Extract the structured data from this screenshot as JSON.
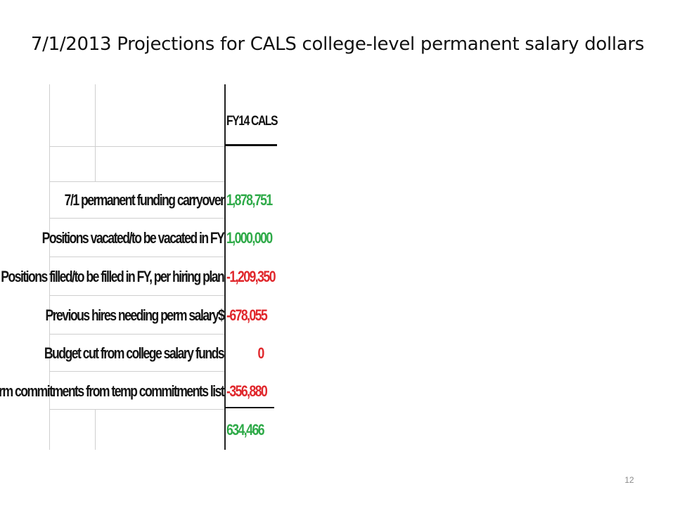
{
  "slide": {
    "title": "7/1/2013 Projections for CALS college-level permanent salary dollars",
    "page_number": "12"
  },
  "table": {
    "column_header": "FY14 CALS",
    "rows": [
      {
        "label": "7/1 permanent funding carryover",
        "value": "1,878,751",
        "sign": "positive",
        "color": "#2eaa48"
      },
      {
        "label": "Positions vacated/to be vacated in FY",
        "value": "1,000,000",
        "sign": "positive",
        "color": "#2eaa48"
      },
      {
        "label": "Positions filled/to be filled in FY, per hiring plan",
        "value": "-1,209,350",
        "sign": "negative",
        "color": "#e0262b"
      },
      {
        "label": "Previous hires needing perm salary$",
        "value": "-678,055",
        "sign": "negative",
        "color": "#e0262b"
      },
      {
        "label": "Budget cut from college salary funds",
        "value": "0",
        "sign": "negative",
        "color": "#e0262b"
      },
      {
        "label": "Perm commitments from temp commitments list",
        "value": "-356,880",
        "sign": "negative",
        "color": "#e0262b"
      }
    ],
    "total": {
      "value": "634,466",
      "color": "#2eaa48"
    }
  }
}
